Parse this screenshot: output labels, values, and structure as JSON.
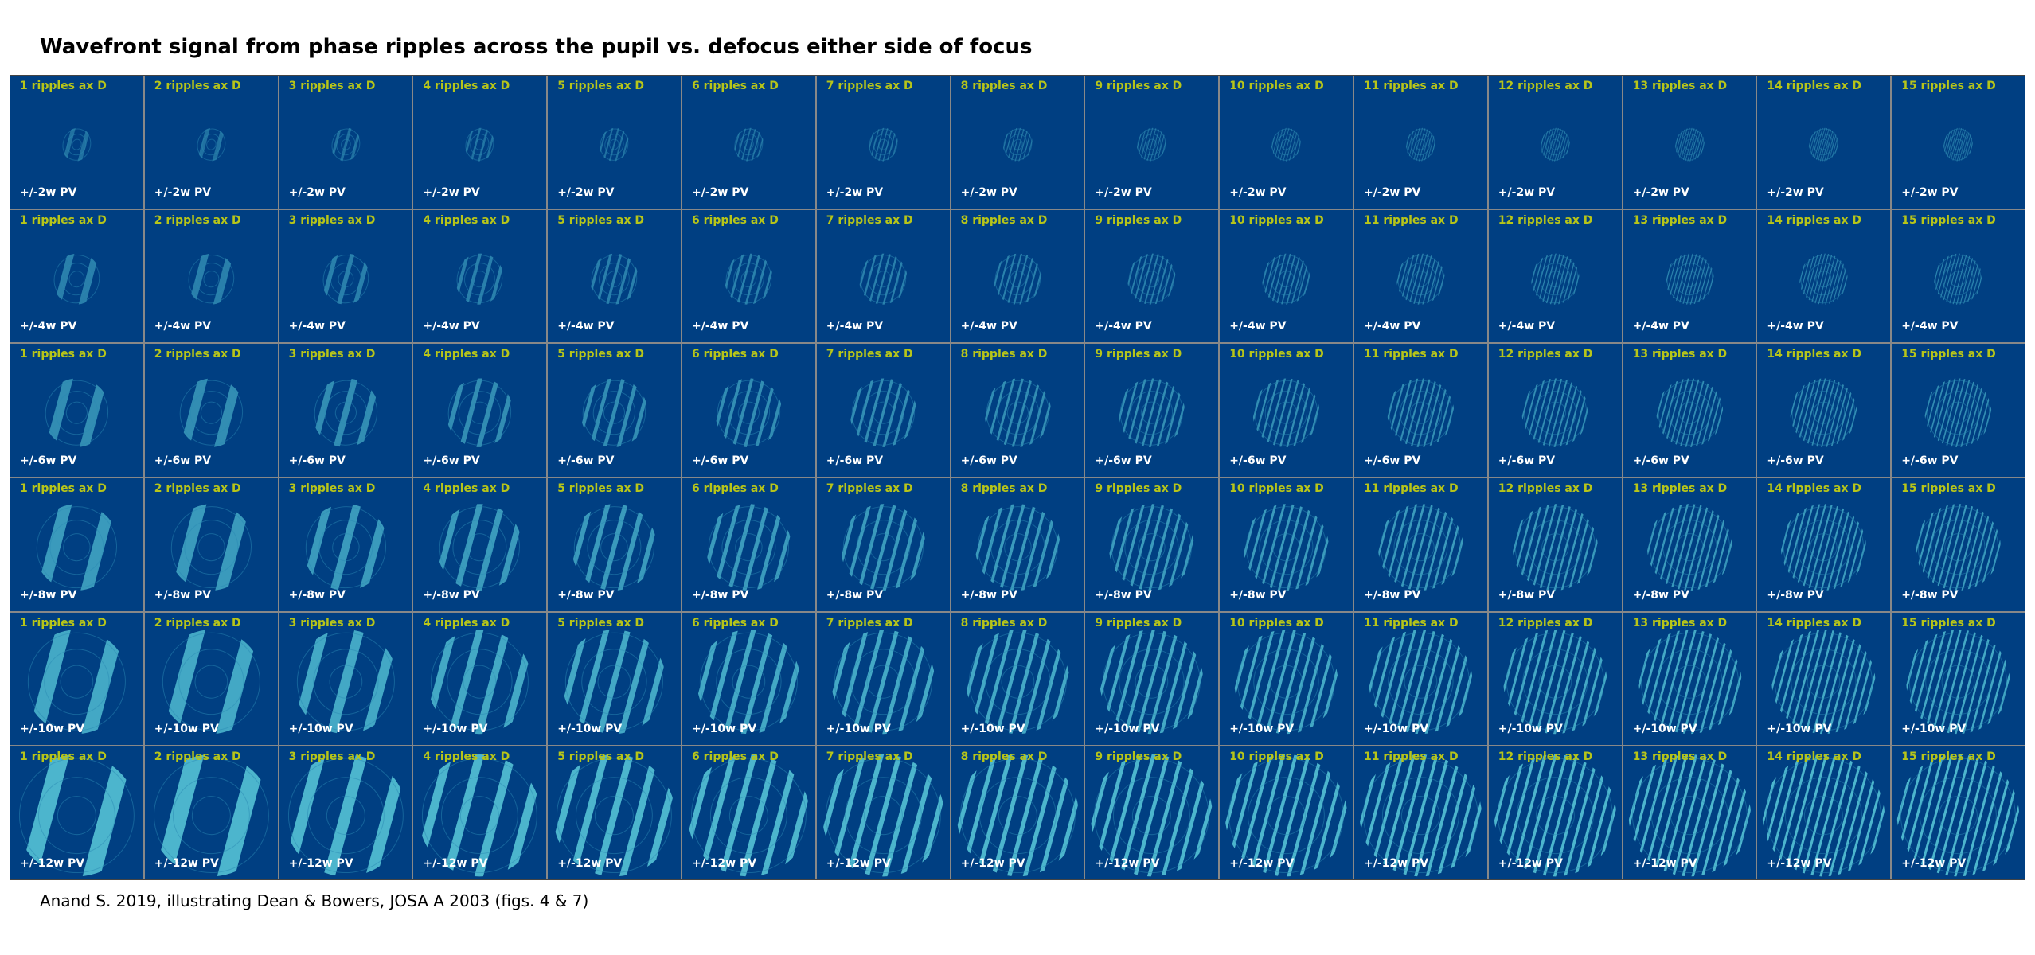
{
  "title": "Wavefront signal from phase ripples across the pupil vs. defocus either side of focus",
  "caption": "Anand S. 2019, illustrating Dean & Bowers, JOSA A 2003 (figs. 4 & 7)",
  "colors": {
    "panel_background": "#003f82",
    "ripple_label": "#b7c519",
    "pv_label": "#ffffff",
    "fringe": "#5fd3e0"
  },
  "ripple_labels": [
    "1 ripples ax D",
    "2 ripples ax D",
    "3 ripples ax D",
    "4 ripples ax D",
    "5 ripples ax D",
    "6 ripples ax D",
    "7 ripples ax D",
    "8 ripples ax D",
    "9 ripples ax D",
    "10 ripples ax D",
    "11 ripples ax D",
    "12 ripples ax D",
    "13 ripples ax D",
    "14 ripples ax D",
    "15 ripples ax D"
  ],
  "ripple_counts": [
    1,
    2,
    3,
    4,
    5,
    6,
    7,
    8,
    9,
    10,
    11,
    12,
    13,
    14,
    15
  ],
  "defocus_labels": [
    "+/-2w PV",
    "+/-4w PV",
    "+/-6w PV",
    "+/-8w PV",
    "+/-10w PV",
    "+/-12w PV"
  ],
  "defocus_waves": [
    2,
    4,
    6,
    8,
    10,
    12
  ]
}
